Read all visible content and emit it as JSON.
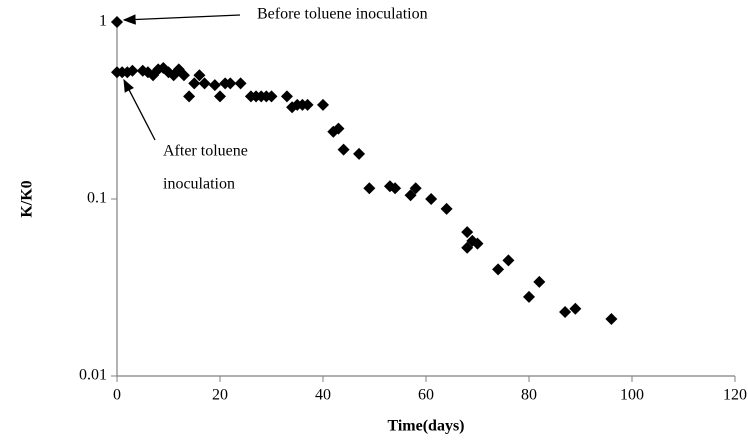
{
  "chart_data": {
    "type": "scatter",
    "x_label": "Time(days)",
    "y_label": "K/K0",
    "series": [
      {
        "color": "#000000",
        "x": [
          0,
          0,
          1,
          2,
          3,
          5,
          6,
          7,
          8,
          9,
          10,
          11,
          12,
          13,
          14,
          15,
          16,
          17,
          19,
          20,
          21,
          22,
          24,
          26,
          27,
          28,
          29,
          30,
          33,
          34,
          35,
          36,
          37,
          40,
          42,
          43,
          44,
          47,
          49,
          53,
          54,
          57,
          58,
          61,
          64,
          68,
          68,
          69,
          70,
          74,
          76,
          80,
          82,
          87,
          89,
          96
        ],
        "values": [
          1,
          0.52,
          0.52,
          0.52,
          0.53,
          0.53,
          0.52,
          0.5,
          0.54,
          0.55,
          0.52,
          0.5,
          0.54,
          0.5,
          0.38,
          0.45,
          0.5,
          0.45,
          0.44,
          0.38,
          0.45,
          0.45,
          0.45,
          0.38,
          0.38,
          0.38,
          0.38,
          0.38,
          0.38,
          0.33,
          0.34,
          0.34,
          0.34,
          0.34,
          0.24,
          0.25,
          0.19,
          0.18,
          0.115,
          0.118,
          0.115,
          0.105,
          0.115,
          0.1,
          0.088,
          0.065,
          0.053,
          0.058,
          0.056,
          0.04,
          0.045,
          0.028,
          0.034,
          0.023,
          0.024,
          0.021
        ]
      }
    ],
    "xlim": [
      0,
      120
    ],
    "xticks": [
      0,
      20,
      40,
      60,
      80,
      100,
      120
    ],
    "ylim": [
      0.01,
      1
    ],
    "yticks": [
      0.01,
      0.1,
      1
    ],
    "y_scale": "log",
    "annotations": [
      {
        "lines": [
          "Before toluene inoculation"
        ]
      },
      {
        "lines": [
          "After toluene",
          "inoculation"
        ]
      }
    ]
  }
}
